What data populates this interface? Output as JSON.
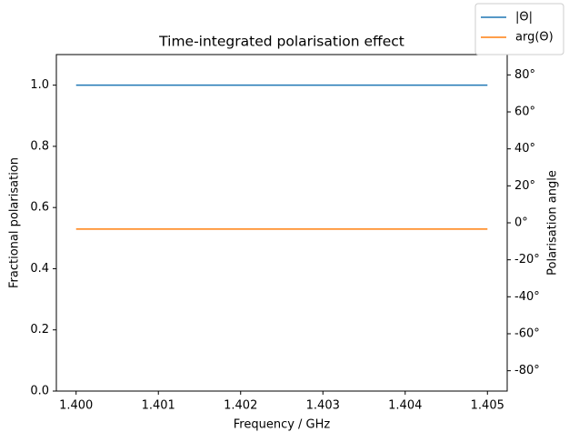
{
  "chart_data": {
    "type": "line",
    "title": "Time-integrated polarisation effect",
    "x_label": "Frequency / GHz",
    "y_label": "Fractional polarisation",
    "y2_label": "Polarisation angle",
    "x": [
      1.4,
      1.405
    ],
    "series": [
      {
        "name": "|Θ|",
        "color": "#1f77b4",
        "values": [
          1.0,
          1.0
        ]
      },
      {
        "name": "arg(Θ)",
        "color": "#ff7f0e",
        "axis": "y2",
        "values": [
          -3.4,
          -3.4
        ]
      }
    ],
    "xlim": [
      1.39976,
      1.40524
    ],
    "xticks": [
      {
        "value": 1.4,
        "label": "1.400"
      },
      {
        "value": 1.401,
        "label": "1.401"
      },
      {
        "value": 1.402,
        "label": "1.402"
      },
      {
        "value": 1.403,
        "label": "1.403"
      },
      {
        "value": 1.404,
        "label": "1.404"
      },
      {
        "value": 1.405,
        "label": "1.405"
      }
    ],
    "ylim": [
      0,
      1.1
    ],
    "yticks": [
      {
        "value": 0,
        "label": "0.0"
      },
      {
        "value": 0.2,
        "label": "0.2"
      },
      {
        "value": 0.4,
        "label": "0.4"
      },
      {
        "value": 0.6,
        "label": "0.6"
      },
      {
        "value": 0.8,
        "label": "0.8"
      },
      {
        "value": 1,
        "label": "1.0"
      }
    ],
    "y2lim": [
      -91,
      91
    ],
    "y2ticks": [
      {
        "value": -80,
        "label": "-80°"
      },
      {
        "value": -60,
        "label": "-60°"
      },
      {
        "value": -40,
        "label": "-40°"
      },
      {
        "value": -20,
        "label": "-20°"
      },
      {
        "value": 0,
        "label": "0°"
      },
      {
        "value": 20,
        "label": "20°"
      },
      {
        "value": 40,
        "label": "40°"
      },
      {
        "value": 60,
        "label": "60°"
      },
      {
        "value": 80,
        "label": "80°"
      }
    ],
    "legend": "upper right"
  }
}
